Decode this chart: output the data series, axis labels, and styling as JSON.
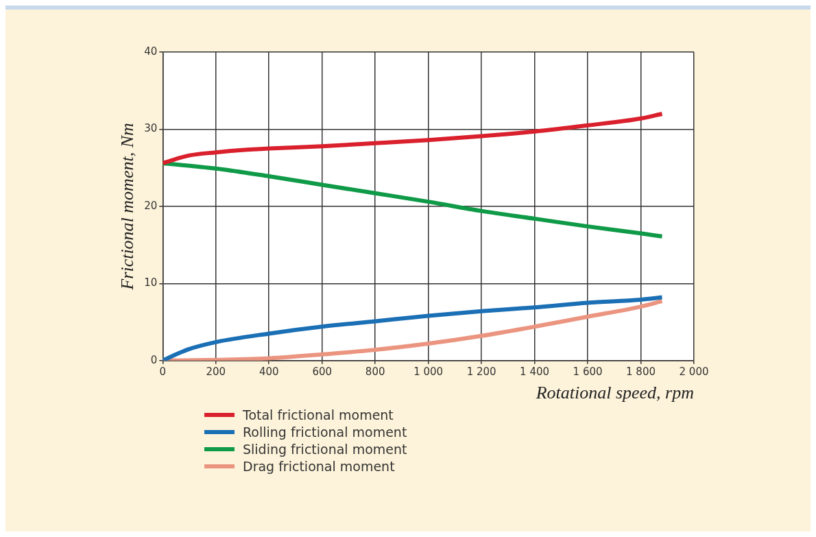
{
  "chart_data": {
    "type": "line",
    "xlabel": "Rotational speed, rpm",
    "ylabel": "Frictional moment, Nm",
    "xlim": [
      0,
      2000
    ],
    "xticks": [
      0,
      200,
      400,
      600,
      800,
      {
        "value": 1000,
        "label": "1 000"
      },
      {
        "value": 1200,
        "label": "1 200"
      },
      {
        "value": 1400,
        "label": "1 400"
      },
      {
        "value": 1600,
        "label": "1 600"
      },
      {
        "value": 1800,
        "label": "1 800"
      },
      {
        "value": 2000,
        "label": "2 000"
      }
    ],
    "ylim": [
      0,
      40
    ],
    "yticks": [
      0,
      10,
      20,
      30,
      40
    ],
    "grid": true,
    "legend": "bottom",
    "marker": "none",
    "line_style": "solid",
    "series": [
      {
        "name": "Total frictional moment",
        "color": "#d9202c",
        "x": [
          0,
          100,
          200,
          300,
          400,
          600,
          800,
          1000,
          1200,
          1400,
          1600,
          1800,
          1880
        ],
        "values": [
          25.6,
          26.6,
          27.0,
          27.3,
          27.5,
          27.8,
          28.2,
          28.6,
          29.1,
          29.7,
          30.5,
          31.4,
          32.0
        ]
      },
      {
        "name": "Rolling frictional moment",
        "color": "#1a6fb5",
        "x": [
          0,
          50,
          100,
          200,
          400,
          600,
          800,
          1000,
          1200,
          1400,
          1600,
          1800,
          1880
        ],
        "values": [
          0,
          0.8,
          1.5,
          2.4,
          3.5,
          4.4,
          5.1,
          5.8,
          6.4,
          6.9,
          7.5,
          7.9,
          8.2
        ]
      },
      {
        "name": "Sliding frictional moment",
        "color": "#0f9a48",
        "x": [
          0,
          200,
          400,
          600,
          800,
          1000,
          1200,
          1400,
          1600,
          1800,
          1880
        ],
        "values": [
          25.6,
          24.9,
          23.9,
          22.8,
          21.7,
          20.6,
          19.4,
          18.4,
          17.4,
          16.5,
          16.1
        ]
      },
      {
        "name": "Drag frictional moment",
        "color": "#eb9580",
        "x": [
          0,
          200,
          400,
          600,
          800,
          1000,
          1200,
          1400,
          1600,
          1800,
          1880
        ],
        "values": [
          0,
          0.1,
          0.3,
          0.8,
          1.4,
          2.2,
          3.2,
          4.4,
          5.7,
          7.0,
          7.7
        ]
      }
    ]
  }
}
